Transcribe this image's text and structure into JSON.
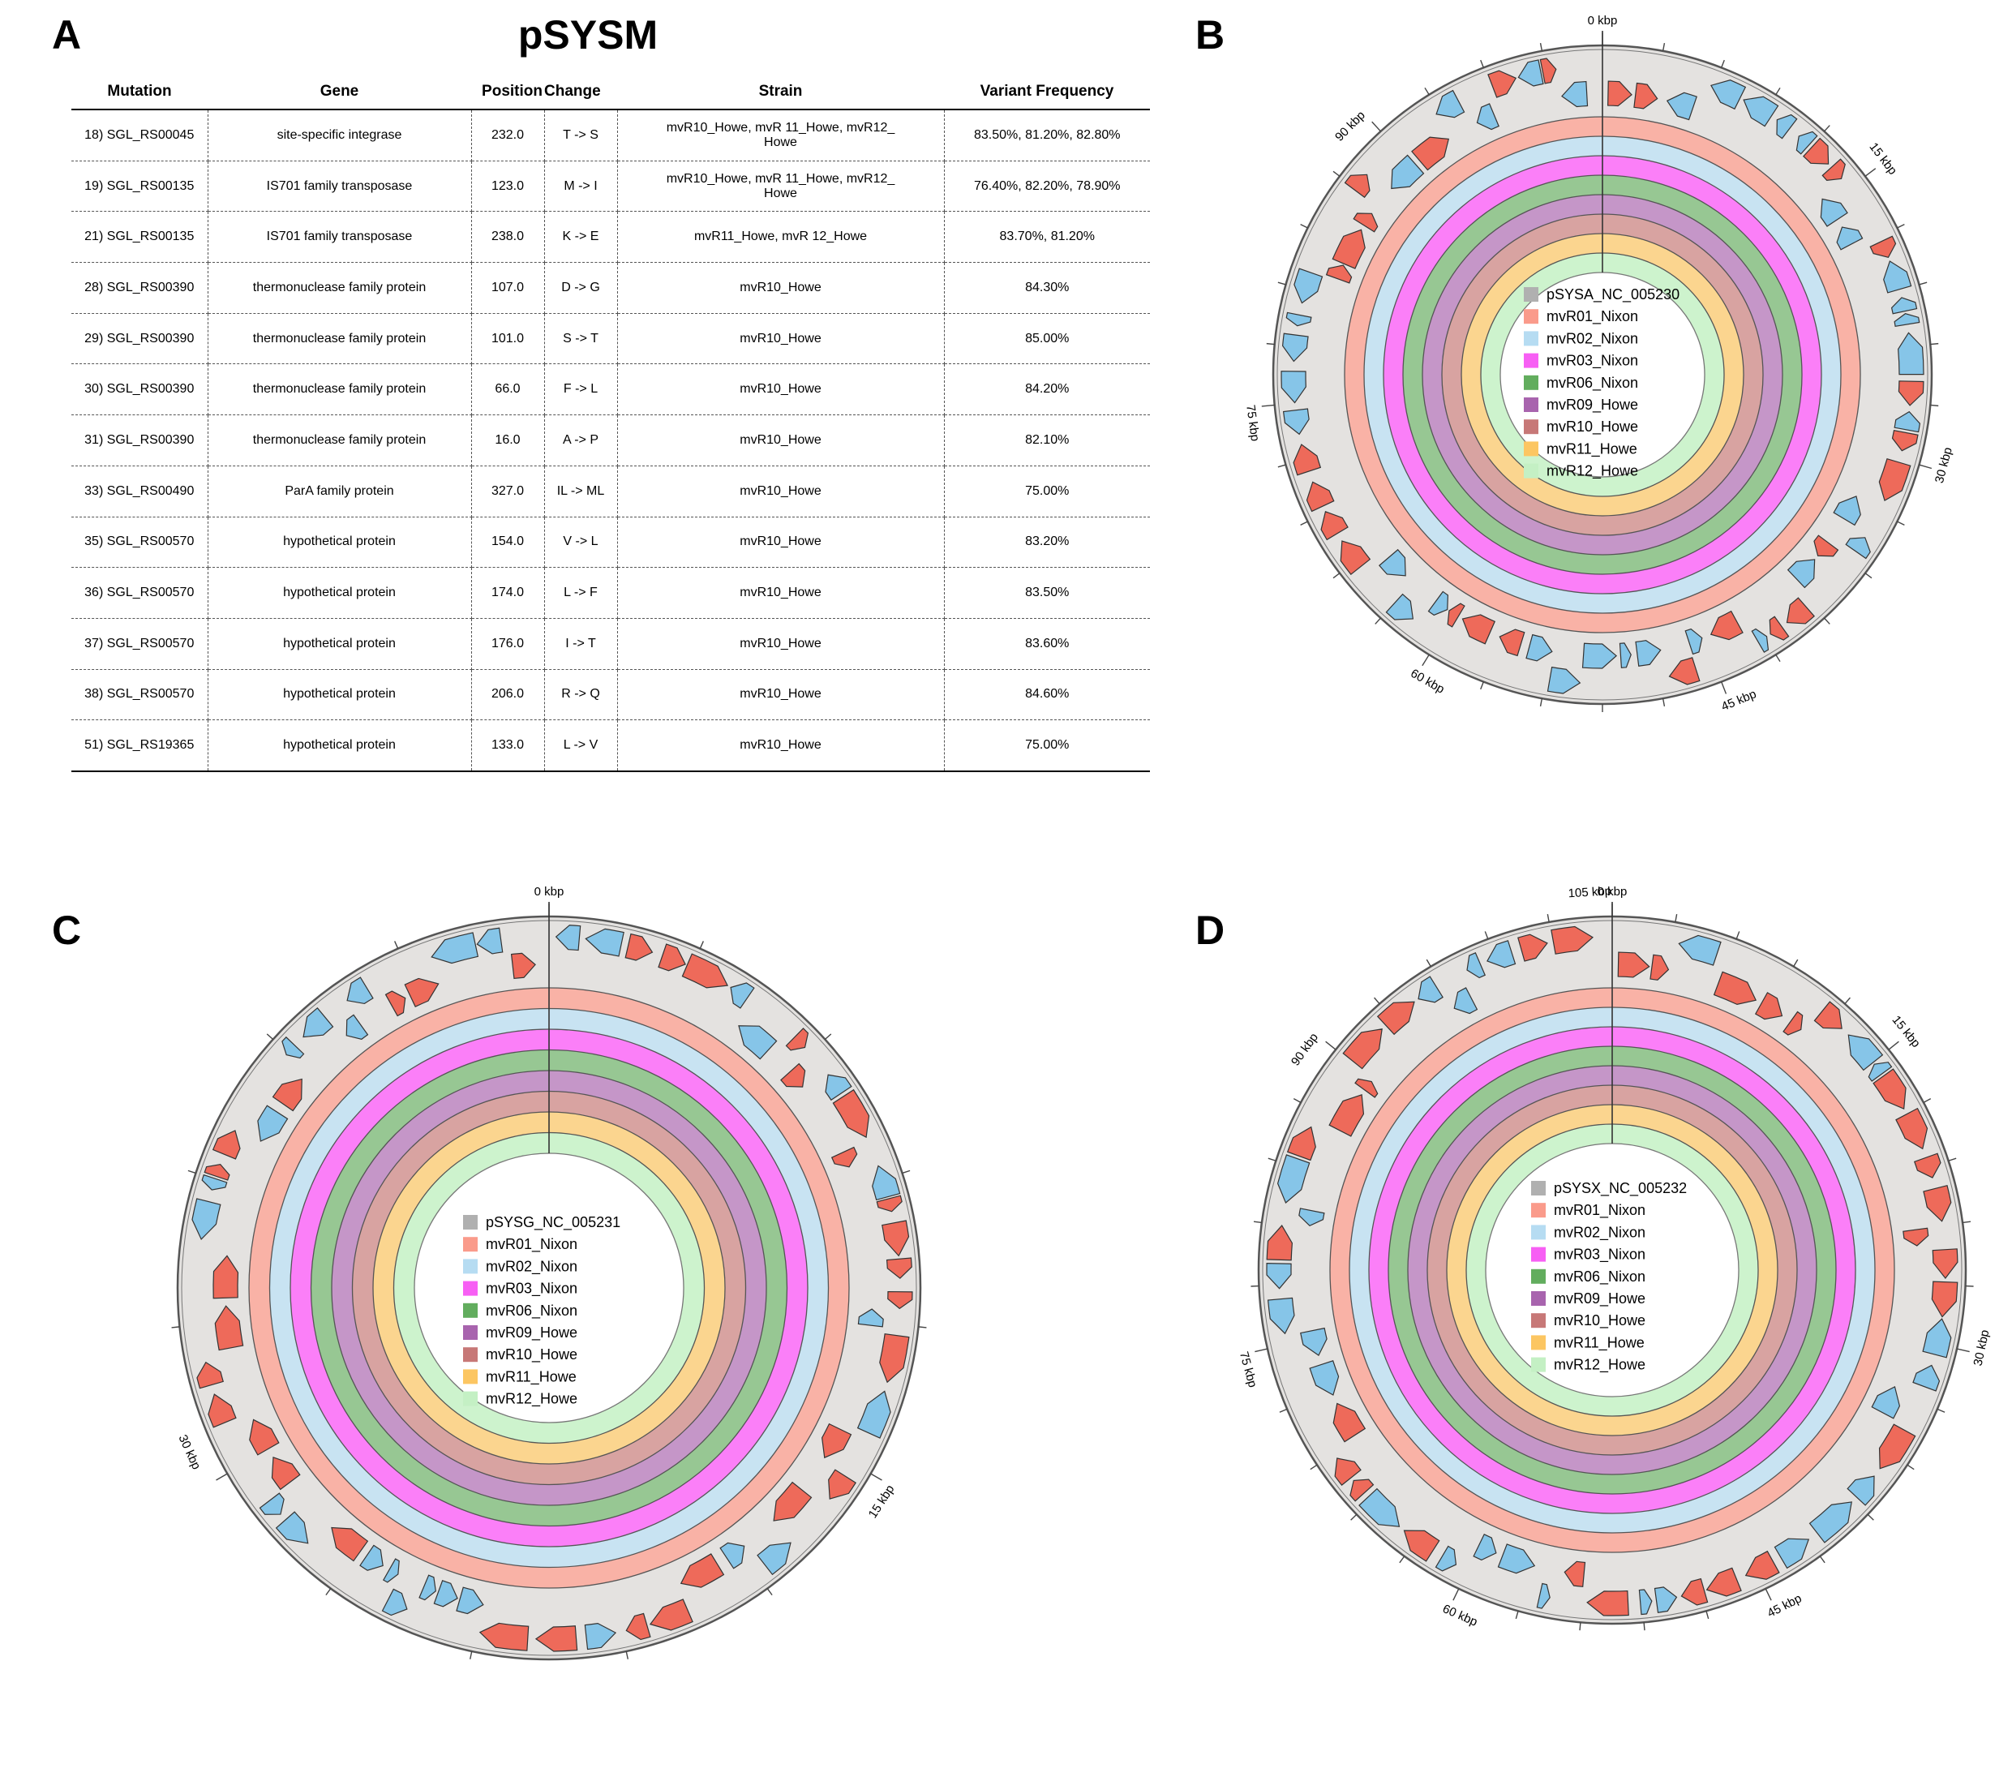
{
  "panels": {
    "a": "A",
    "b": "B",
    "c": "C",
    "d": "D"
  },
  "table": {
    "title": "pSYSM",
    "headers": [
      "Mutation",
      "Gene",
      "Position",
      "Change",
      "Strain",
      "Variant Frequency"
    ],
    "rows": [
      [
        "18) SGL_RS00045",
        "site-specific integrase",
        "232.0",
        "T -> S",
        "mvR10_Howe, mvR 11_Howe, mvR12_ Howe",
        "83.50%, 81.20%, 82.80%"
      ],
      [
        "19) SGL_RS00135",
        "IS701 family transposase",
        "123.0",
        "M -> I",
        "mvR10_Howe, mvR 11_Howe, mvR12_ Howe",
        "76.40%, 82.20%, 78.90%"
      ],
      [
        "21) SGL_RS00135",
        "IS701 family transposase",
        "238.0",
        "K -> E",
        "mvR11_Howe, mvR 12_Howe",
        "83.70%, 81.20%"
      ],
      [
        "28) SGL_RS00390",
        "thermonuclease family protein",
        "107.0",
        "D -> G",
        "mvR10_Howe",
        "84.30%"
      ],
      [
        "29) SGL_RS00390",
        "thermonuclease family protein",
        "101.0",
        "S -> T",
        "mvR10_Howe",
        "85.00%"
      ],
      [
        "30) SGL_RS00390",
        "thermonuclease family protein",
        "66.0",
        "F -> L",
        "mvR10_Howe",
        "84.20%"
      ],
      [
        "31) SGL_RS00390",
        "thermonuclease family protein",
        "16.0",
        "A -> P",
        "mvR10_Howe",
        "82.10%"
      ],
      [
        "33) SGL_RS00490",
        "ParA family protein",
        "327.0",
        "IL -> ML",
        "mvR10_Howe",
        "75.00%"
      ],
      [
        "35) SGL_RS00570",
        "hypothetical protein",
        "154.0",
        "V -> L",
        "mvR10_Howe",
        "83.20%"
      ],
      [
        "36) SGL_RS00570",
        "hypothetical protein",
        "174.0",
        "L -> F",
        "mvR10_Howe",
        "83.50%"
      ],
      [
        "37) SGL_RS00570",
        "hypothetical protein",
        "176.0",
        "I -> T",
        "mvR10_Howe",
        "83.60%"
      ],
      [
        "38) SGL_RS00570",
        "hypothetical protein",
        "206.0",
        "R -> Q",
        "mvR10_Howe",
        "84.60%"
      ],
      [
        "51) SGL_RS19365",
        "hypothetical protein",
        "133.0",
        "L -> V",
        "mvR10_Howe",
        "75.00%"
      ]
    ]
  },
  "colors": {
    "ring": [
      "#f9b2a6",
      "#c8e3f2",
      "#fb7ff8",
      "#97c793",
      "#c596c8",
      "#d8a3a1",
      "#fbd58f",
      "#cdf3cd"
    ],
    "legend": [
      "#b0b0b0",
      "#fa9b8b",
      "#b6dcf2",
      "#f75ff4",
      "#62ad5e",
      "#a864ae",
      "#c77877",
      "#fcc662",
      "#c4f0c4"
    ],
    "gene_forward": "#ee6a5a",
    "gene_reverse": "#86c5e8",
    "backbone": "#e4e2e0"
  },
  "maps": [
    {
      "id": "B",
      "legend": [
        "pSYSA_NC_005230",
        "mvR01_Nixon",
        "mvR02_Nixon",
        "mvR03_Nixon",
        "mvR06_Nixon",
        "mvR09_Howe",
        "mvR10_Howe",
        "mvR11_Howe",
        "mvR12_Howe"
      ],
      "size_kbp": 103,
      "labels": [
        {
          "text": "0 kbp",
          "kbp": 0
        },
        {
          "text": "15 kbp",
          "kbp": 15
        },
        {
          "text": "30 kbp",
          "kbp": 30
        },
        {
          "text": "45 kbp",
          "kbp": 45
        },
        {
          "text": "60 kbp",
          "kbp": 60
        },
        {
          "text": "75 kbp",
          "kbp": 75
        },
        {
          "text": "90 kbp",
          "kbp": 90
        }
      ]
    },
    {
      "id": "C",
      "legend": [
        "pSYSG_NC_005231",
        "mvR01_Nixon",
        "mvR02_Nixon",
        "mvR03_Nixon",
        "mvR06_Nixon",
        "mvR09_Howe",
        "mvR10_Howe",
        "mvR11_Howe",
        "mvR12_Howe"
      ],
      "size_kbp": 44,
      "labels": [
        {
          "text": "0 kbp",
          "kbp": 0
        },
        {
          "text": "15 kbp",
          "kbp": 15
        },
        {
          "text": "30 kbp",
          "kbp": 30
        }
      ]
    },
    {
      "id": "D",
      "legend": [
        "pSYSX_NC_005232",
        "mvR01_Nixon",
        "mvR02_Nixon",
        "mvR03_Nixon",
        "mvR06_Nixon",
        "mvR09_Howe",
        "mvR10_Howe",
        "mvR11_Howe",
        "mvR12_Howe"
      ],
      "size_kbp": 106,
      "labels": [
        {
          "text": "0 kbp",
          "kbp": 0
        },
        {
          "text": "15 kbp",
          "kbp": 15
        },
        {
          "text": "30 kbp",
          "kbp": 30
        },
        {
          "text": "45 kbp",
          "kbp": 45
        },
        {
          "text": "60 kbp",
          "kbp": 60
        },
        {
          "text": "75 kbp",
          "kbp": 75
        },
        {
          "text": "90 kbp",
          "kbp": 90
        },
        {
          "text": "105 kbp",
          "kbp": 105
        }
      ]
    }
  ]
}
